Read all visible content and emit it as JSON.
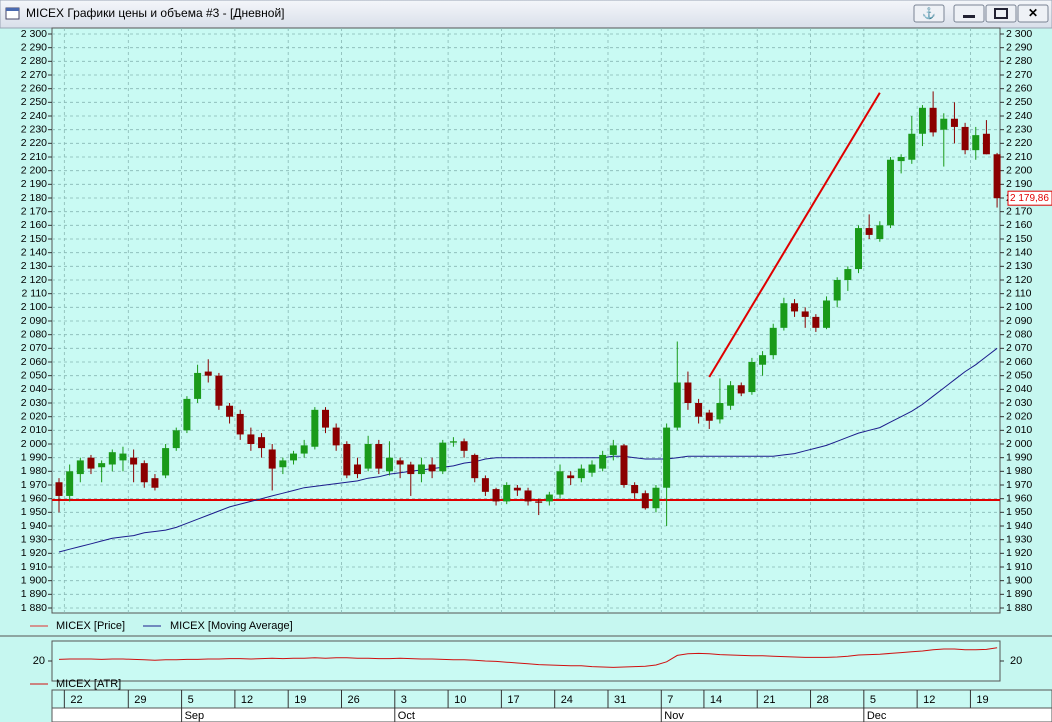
{
  "window_title": "MICEX Графики цены и объема #3 - [Дневной]",
  "chart_data": {
    "type": "candlestick",
    "categories": [
      null,
      "22",
      null,
      null,
      null,
      null,
      null,
      "29",
      null,
      null,
      null,
      null,
      "5",
      null,
      null,
      null,
      null,
      "12",
      null,
      null,
      null,
      null,
      "19",
      null,
      null,
      null,
      null,
      "26",
      null,
      null,
      null,
      null,
      "3",
      null,
      null,
      null,
      null,
      "10",
      null,
      null,
      null,
      null,
      "17",
      null,
      null,
      null,
      null,
      "24",
      null,
      null,
      null,
      null,
      "31",
      null,
      null,
      null,
      null,
      "7",
      null,
      null,
      null,
      "14",
      null,
      null,
      null,
      null,
      "21",
      null,
      null,
      null,
      null,
      "28",
      null,
      null,
      null,
      null,
      "5",
      null,
      null,
      null,
      null,
      "12",
      null,
      null,
      null,
      null,
      "19",
      null,
      null
    ],
    "months": [
      null,
      null,
      null,
      null,
      null,
      null,
      null,
      null,
      null,
      null,
      null,
      null,
      "Sep",
      null,
      null,
      null,
      null,
      null,
      null,
      null,
      null,
      null,
      null,
      null,
      null,
      null,
      null,
      null,
      null,
      null,
      null,
      null,
      "Oct",
      null,
      null,
      null,
      null,
      null,
      null,
      null,
      null,
      null,
      null,
      null,
      null,
      null,
      null,
      null,
      null,
      null,
      null,
      null,
      null,
      null,
      null,
      null,
      null,
      "Nov",
      null,
      null,
      null,
      null,
      null,
      null,
      null,
      null,
      null,
      null,
      null,
      null,
      null,
      null,
      null,
      null,
      null,
      null,
      "Dec",
      null,
      null,
      null,
      null,
      null,
      null,
      null,
      null,
      null,
      null,
      null,
      null
    ],
    "price_name": "MICEX [Price]",
    "up_color": "#1a9a1a",
    "down_color": "#8b0000",
    "open": [
      1972,
      1962,
      1978,
      1990,
      1983,
      1985,
      1988,
      1990,
      1986,
      1975,
      1977,
      1997,
      2010,
      2033,
      2053,
      2050,
      2028,
      2022,
      2007,
      2005,
      1996,
      1983,
      1988,
      1993,
      1998,
      2025,
      2012,
      2000,
      1985,
      1982,
      2000,
      1980,
      1988,
      1985,
      1978,
      1985,
      1980,
      2001,
      2002,
      1992,
      1975,
      1967,
      1958,
      1968,
      1966,
      1958,
      1958,
      1963,
      1977,
      1975,
      1979,
      1982,
      1992,
      1999,
      1970,
      1964,
      1953,
      1968,
      2012,
      2045,
      2030,
      2023,
      2018,
      2028,
      2043,
      2038,
      2058,
      2065,
      2085,
      2103,
      2097,
      2093,
      2085,
      2105,
      2120,
      2128,
      2158,
      2150,
      2160,
      2207,
      2208,
      2227,
      2246,
      2230,
      2238,
      2232,
      2215,
      2227,
      2212
    ],
    "high": [
      1975,
      1985,
      1990,
      1992,
      1988,
      1996,
      1998,
      1996,
      1988,
      1978,
      2000,
      2012,
      2035,
      2058,
      2062,
      2052,
      2030,
      2025,
      2012,
      2008,
      2000,
      1990,
      1995,
      2003,
      2027,
      2027,
      2015,
      2002,
      1990,
      2006,
      2003,
      2002,
      1990,
      1987,
      1990,
      1990,
      2003,
      2005,
      2004,
      1993,
      1977,
      1968,
      1972,
      1970,
      1968,
      1960,
      1965,
      1985,
      1980,
      1985,
      1988,
      1995,
      2003,
      2000,
      1972,
      1966,
      1970,
      2015,
      2075,
      2053,
      2033,
      2025,
      2048,
      2046,
      2045,
      2063,
      2068,
      2088,
      2107,
      2106,
      2100,
      2095,
      2108,
      2122,
      2130,
      2160,
      2168,
      2163,
      2210,
      2212,
      2240,
      2248,
      2258,
      2242,
      2250,
      2235,
      2232,
      2237,
      2213
    ],
    "low": [
      1950,
      1958,
      1972,
      1978,
      1972,
      1980,
      1980,
      1972,
      1968,
      1966,
      1975,
      1995,
      2008,
      2030,
      2045,
      2025,
      2015,
      2003,
      1995,
      1990,
      1966,
      1978,
      1985,
      1990,
      1996,
      2008,
      1995,
      1975,
      1975,
      1980,
      1978,
      1977,
      1975,
      1962,
      1972,
      1975,
      1978,
      1998,
      1990,
      1972,
      1962,
      1955,
      1956,
      1962,
      1955,
      1948,
      1955,
      1960,
      1970,
      1972,
      1976,
      1980,
      1988,
      1968,
      1960,
      1952,
      1950,
      1940,
      2010,
      2025,
      2015,
      2011,
      2015,
      2025,
      2035,
      2036,
      2050,
      2062,
      2083,
      2093,
      2085,
      2082,
      2084,
      2100,
      2112,
      2125,
      2150,
      2148,
      2158,
      2198,
      2205,
      2218,
      2225,
      2203,
      2220,
      2212,
      2208,
      2212,
      2173
    ],
    "close": [
      1962,
      1980,
      1988,
      1982,
      1986,
      1994,
      1993,
      1985,
      1972,
      1968,
      1997,
      2010,
      2033,
      2052,
      2050,
      2028,
      2020,
      2007,
      2000,
      1997,
      1982,
      1988,
      1993,
      1999,
      2025,
      2012,
      1999,
      1977,
      1978,
      2000,
      1982,
      1990,
      1985,
      1978,
      1985,
      1980,
      2001,
      2002,
      1995,
      1975,
      1965,
      1958,
      1970,
      1966,
      1958,
      1957,
      1963,
      1980,
      1975,
      1982,
      1985,
      1992,
      1999,
      1970,
      1964,
      1953,
      1968,
      2012,
      2045,
      2030,
      2020,
      2017,
      2030,
      2043,
      2037,
      2060,
      2065,
      2085,
      2103,
      2097,
      2093,
      2085,
      2105,
      2120,
      2128,
      2158,
      2153,
      2160,
      2208,
      2210,
      2227,
      2246,
      2228,
      2238,
      2232,
      2215,
      2226,
      2212,
      2179.86
    ],
    "ma_name": "MICEX [Moving Average]",
    "ma_color": "#1c1c8c",
    "ma": [
      1921,
      1923,
      1925,
      1927,
      1929,
      1931,
      1932,
      1933,
      1935,
      1936,
      1937,
      1939,
      1942,
      1945,
      1948,
      1951,
      1954,
      1956,
      1958,
      1960,
      1962,
      1964,
      1966,
      1968,
      1969,
      1970,
      1971,
      1972,
      1973,
      1975,
      1976,
      1978,
      1979,
      1980,
      1981,
      1982,
      1983,
      1984,
      1986,
      1987,
      1989,
      1990,
      1990,
      1990,
      1990,
      1990,
      1990,
      1990,
      1990,
      1990,
      1990,
      1990,
      1991,
      1991,
      1990,
      1989,
      1989,
      1989,
      1990,
      1991,
      1991,
      1991,
      1991,
      1991,
      1991,
      1991,
      1991,
      1991,
      1992,
      1993,
      1995,
      1997,
      1999,
      2002,
      2005,
      2008,
      2010,
      2012,
      2016,
      2020,
      2024,
      2029,
      2035,
      2041,
      2047,
      2053,
      2058,
      2064,
      2070
    ],
    "hline": 1959,
    "hline_color": "#e00000",
    "trend_line": {
      "x": [
        61,
        77
      ],
      "y": [
        2049,
        2257
      ],
      "color": "#e00000"
    },
    "last_price": {
      "value": 2179.86,
      "label": "2 179,86"
    },
    "ylim": [
      1880,
      2300
    ],
    "yticks": [
      {
        "value": 1880,
        "label": "1 880"
      },
      {
        "value": 1890,
        "label": "1 890"
      },
      {
        "value": 1900,
        "label": "1 900"
      },
      {
        "value": 1910,
        "label": "1 910"
      },
      {
        "value": 1920,
        "label": "1 920"
      },
      {
        "value": 1930,
        "label": "1 930"
      },
      {
        "value": 1940,
        "label": "1 940"
      },
      {
        "value": 1950,
        "label": "1 950"
      },
      {
        "value": 1960,
        "label": "1 960"
      },
      {
        "value": 1970,
        "label": "1 970"
      },
      {
        "value": 1980,
        "label": "1 980"
      },
      {
        "value": 1990,
        "label": "1 990"
      },
      {
        "value": 2000,
        "label": "2 000"
      },
      {
        "value": 2010,
        "label": "2 010"
      },
      {
        "value": 2020,
        "label": "2 020"
      },
      {
        "value": 2030,
        "label": "2 030"
      },
      {
        "value": 2040,
        "label": "2 040"
      },
      {
        "value": 2050,
        "label": "2 050"
      },
      {
        "value": 2060,
        "label": "2 060"
      },
      {
        "value": 2070,
        "label": "2 070"
      },
      {
        "value": 2080,
        "label": "2 080"
      },
      {
        "value": 2090,
        "label": "2 090"
      },
      {
        "value": 2100,
        "label": "2 100"
      },
      {
        "value": 2110,
        "label": "2 110"
      },
      {
        "value": 2120,
        "label": "2 120"
      },
      {
        "value": 2130,
        "label": "2 130"
      },
      {
        "value": 2140,
        "label": "2 140"
      },
      {
        "value": 2150,
        "label": "2 150"
      },
      {
        "value": 2160,
        "label": "2 160"
      },
      {
        "value": 2170,
        "label": "2 170"
      },
      {
        "value": 2180,
        "label": "2 180"
      },
      {
        "value": 2190,
        "label": "2 190"
      },
      {
        "value": 2200,
        "label": "2 200"
      },
      {
        "value": 2210,
        "label": "2 210"
      },
      {
        "value": 2220,
        "label": "2 220"
      },
      {
        "value": 2230,
        "label": "2 230"
      },
      {
        "value": 2240,
        "label": "2 240"
      },
      {
        "value": 2250,
        "label": "2 250"
      },
      {
        "value": 2260,
        "label": "2 260"
      },
      {
        "value": 2270,
        "label": "2 270"
      },
      {
        "value": 2280,
        "label": "2 280"
      },
      {
        "value": 2290,
        "label": "2 290"
      },
      {
        "value": 2300,
        "label": "2 300"
      }
    ],
    "grid": true,
    "atr": {
      "name": "MICEX [ATR]",
      "color": "#d01010",
      "ylim": [
        15,
        25
      ],
      "yticks": [
        20
      ],
      "values": [
        20.4,
        20.5,
        20.5,
        20.5,
        20.4,
        20.5,
        20.5,
        20.4,
        20.3,
        20.2,
        20.3,
        20.3,
        20.4,
        20.4,
        20.5,
        20.5,
        20.6,
        20.6,
        20.5,
        20.6,
        20.7,
        20.6,
        20.7,
        20.7,
        20.8,
        20.7,
        20.8,
        20.8,
        20.7,
        20.7,
        20.6,
        20.6,
        20.7,
        20.6,
        20.5,
        20.5,
        20.4,
        20.3,
        20.3,
        20.2,
        20.0,
        19.9,
        19.7,
        19.5,
        19.3,
        19.1,
        19.0,
        18.9,
        18.8,
        18.8,
        18.6,
        18.5,
        18.4,
        18.5,
        18.6,
        18.7,
        19.0,
        19.8,
        21.4,
        21.8,
        21.9,
        21.8,
        21.6,
        21.5,
        21.4,
        21.3,
        21.3,
        21.2,
        21.1,
        21.0,
        20.9,
        20.9,
        20.9,
        21.0,
        21.2,
        21.5,
        21.6,
        21.7,
        21.9,
        22.1,
        22.3,
        22.5,
        22.8,
        23.0,
        23.0,
        22.8,
        22.8,
        22.9,
        23.3
      ]
    }
  }
}
